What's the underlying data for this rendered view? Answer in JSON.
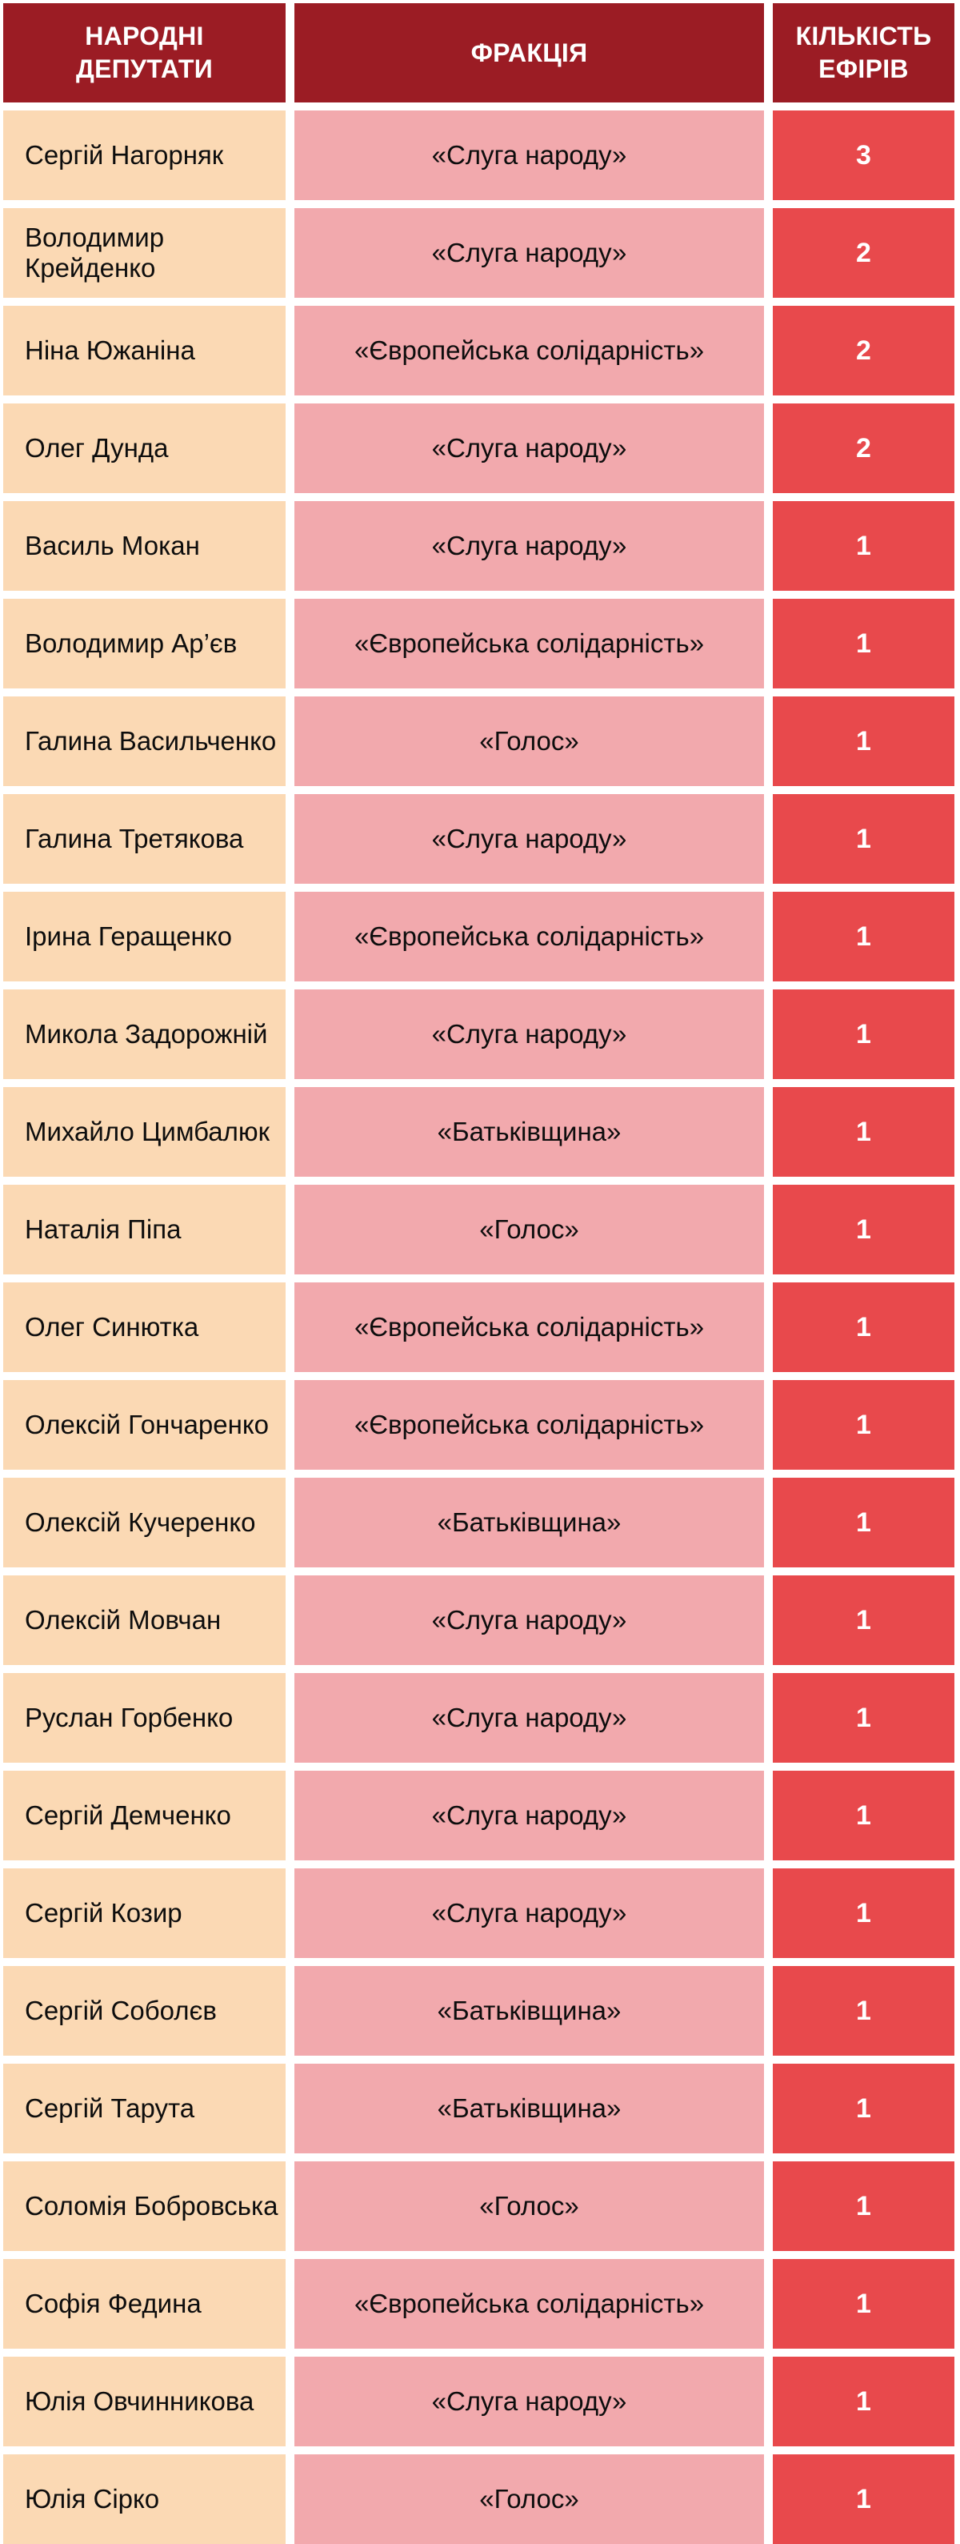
{
  "table": {
    "headers": {
      "deputies": "НАРОДНІ\nДЕПУТАТИ",
      "faction": "ФРАКЦІЯ",
      "air_count": "КІЛЬКІСТЬ\nЕФІРІВ"
    },
    "rows": [
      {
        "name": "Сергій Нагорняк",
        "faction": "«Слуга народу»",
        "count": "3"
      },
      {
        "name": "Володимир Крейденко",
        "faction": "«Слуга народу»",
        "count": "2"
      },
      {
        "name": "Ніна Южаніна",
        "faction": "«Європейська солідарність»",
        "count": "2"
      },
      {
        "name": "Олег Дунда",
        "faction": "«Слуга народу»",
        "count": "2"
      },
      {
        "name": "Василь Мокан",
        "faction": "«Слуга народу»",
        "count": "1"
      },
      {
        "name": "Володимир Ар’єв",
        "faction": "«Європейська солідарність»",
        "count": "1"
      },
      {
        "name": "Галина Васильченко",
        "faction": "«Голос»",
        "count": "1"
      },
      {
        "name": "Галина Третякова",
        "faction": "«Слуга народу»",
        "count": "1"
      },
      {
        "name": "Ірина Геращенко",
        "faction": "«Європейська солідарність»",
        "count": "1"
      },
      {
        "name": "Микола Задорожній",
        "faction": "«Слуга народу»",
        "count": "1"
      },
      {
        "name": "Михайло Цимбалюк",
        "faction": "«Батьківщина»",
        "count": "1"
      },
      {
        "name": "Наталія Піпа",
        "faction": "«Голос»",
        "count": "1"
      },
      {
        "name": "Олег Синютка",
        "faction": "«Європейська солідарність»",
        "count": "1"
      },
      {
        "name": "Олексій Гончаренко",
        "faction": "«Європейська солідарність»",
        "count": "1"
      },
      {
        "name": "Олексій Кучеренко",
        "faction": "«Батьківщина»",
        "count": "1"
      },
      {
        "name": "Олексій Мовчан",
        "faction": "«Слуга народу»",
        "count": "1"
      },
      {
        "name": "Руслан Горбенко",
        "faction": "«Слуга народу»",
        "count": "1"
      },
      {
        "name": "Сергій Демченко",
        "faction": "«Слуга народу»",
        "count": "1"
      },
      {
        "name": "Сергій Козир",
        "faction": "«Слуга народу»",
        "count": "1"
      },
      {
        "name": "Сергій Соболєв",
        "faction": "«Батьківщина»",
        "count": "1"
      },
      {
        "name": "Сергій Тарута",
        "faction": "«Батьківщина»",
        "count": "1"
      },
      {
        "name": "Соломія Бобровська",
        "faction": "«Голос»",
        "count": "1"
      },
      {
        "name": "Софія Федина",
        "faction": "«Європейська солідарність»",
        "count": "1"
      },
      {
        "name": "Юлія Овчинникова",
        "faction": "«Слуга народу»",
        "count": "1"
      },
      {
        "name": "Юлія Сірко",
        "faction": "«Голос»",
        "count": "1"
      }
    ]
  },
  "colors": {
    "header_bg": "#9B1C24",
    "name_bg": "#FBD9B4",
    "faction_bg": "#F2A9AD",
    "count_bg": "#E8494C",
    "gap": "#FFFFFF",
    "text_dark": "#0D0D0D",
    "text_light": "#FFFFFF"
  },
  "chart_data": {
    "type": "table",
    "title": "",
    "columns": [
      "НАРОДНІ ДЕПУТАТИ",
      "ФРАКЦІЯ",
      "КІЛЬКІСТЬ ЕФІРІВ"
    ],
    "rows": [
      [
        "Сергій Нагорняк",
        "«Слуга народу»",
        3
      ],
      [
        "Володимир Крейденко",
        "«Слуга народу»",
        2
      ],
      [
        "Ніна Южаніна",
        "«Європейська солідарність»",
        2
      ],
      [
        "Олег Дунда",
        "«Слуга народу»",
        2
      ],
      [
        "Василь Мокан",
        "«Слуга народу»",
        1
      ],
      [
        "Володимир Ар’єв",
        "«Європейська солідарність»",
        1
      ],
      [
        "Галина Васильченко",
        "«Голос»",
        1
      ],
      [
        "Галина Третякова",
        "«Слуга народу»",
        1
      ],
      [
        "Ірина Геращенко",
        "«Європейська солідарність»",
        1
      ],
      [
        "Микола Задорожній",
        "«Слуга народу»",
        1
      ],
      [
        "Михайло Цимбалюк",
        "«Батьківщина»",
        1
      ],
      [
        "Наталія Піпа",
        "«Голос»",
        1
      ],
      [
        "Олег Синютка",
        "«Європейська солідарність»",
        1
      ],
      [
        "Олексій Гончаренко",
        "«Європейська солідарність»",
        1
      ],
      [
        "Олексій Кучеренко",
        "«Батьківщина»",
        1
      ],
      [
        "Олексій Мовчан",
        "«Слуга народу»",
        1
      ],
      [
        "Руслан Горбенко",
        "«Слуга народу»",
        1
      ],
      [
        "Сергій Демченко",
        "«Слуга народу»",
        1
      ],
      [
        "Сергій Козир",
        "«Слуга народу»",
        1
      ],
      [
        "Сергій Соболєв",
        "«Батьківщина»",
        1
      ],
      [
        "Сергій Тарута",
        "«Батьківщина»",
        1
      ],
      [
        "Соломія Бобровська",
        "«Голос»",
        1
      ],
      [
        "Софія Федина",
        "«Європейська солідарність»",
        1
      ],
      [
        "Юлія Овчинникова",
        "«Слуга народу»",
        1
      ],
      [
        "Юлія Сірко",
        "«Голос»",
        1
      ]
    ]
  }
}
